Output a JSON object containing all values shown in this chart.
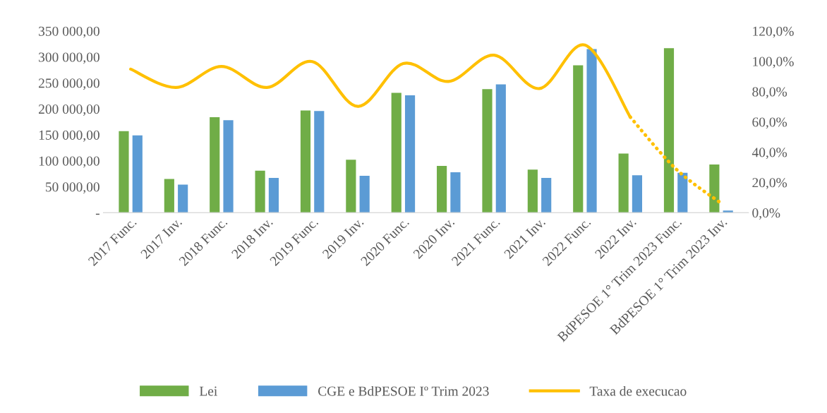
{
  "chart_data": {
    "type": "bar",
    "categories": [
      "2017 Func.",
      "2017 Inv.",
      "2018 Func.",
      "2018 Inv.",
      "2019 Func.",
      "2019 Inv.",
      "2020 Func.",
      "2020 Inv.",
      "2021 Func.",
      "2021 Inv.",
      "2022 Func.",
      "2022 Inv.",
      "BdPESOE 1° Trim 2023 Func.",
      "BdPESOE 1° Trim 2023 Inv."
    ],
    "series": [
      {
        "name": "Lei",
        "color": "#70ad47",
        "values": [
          157000,
          65000,
          184000,
          81000,
          197000,
          102000,
          231000,
          90000,
          238000,
          83000,
          284000,
          114000,
          317000,
          93000
        ]
      },
      {
        "name": "CGE e BdPESOE Iº Trim 2023",
        "color": "#5b9bd5",
        "values": [
          149000,
          54000,
          178000,
          67000,
          196000,
          71000,
          226000,
          78000,
          247000,
          67000,
          315000,
          72000,
          77000,
          4000
        ]
      },
      {
        "name": "Taxa de execucao",
        "type": "line",
        "axis": "y2",
        "color": "#ffc000",
        "line_style": "solid",
        "values": [
          94.8,
          82.7,
          96.6,
          82.7,
          99.8,
          70.2,
          98.5,
          86.7,
          104.0,
          82.0,
          110.7,
          63.1,
          null,
          null
        ]
      },
      {
        "type": "line",
        "axis": "y2",
        "color": "#ffc000",
        "line_style": "dotted",
        "values": [
          null,
          null,
          null,
          null,
          null,
          null,
          null,
          null,
          null,
          null,
          null,
          63.1,
          29.0,
          6.2
        ]
      }
    ],
    "ylim": [
      0,
      350000
    ],
    "yticks": [
      {
        "value": 0,
        "label": "-"
      },
      {
        "value": 50000,
        "label": "50 000,00"
      },
      {
        "value": 100000,
        "label": "100 000,00"
      },
      {
        "value": 150000,
        "label": "150 000,00"
      },
      {
        "value": 200000,
        "label": "200 000,00"
      },
      {
        "value": 250000,
        "label": "250 000,00"
      },
      {
        "value": 300000,
        "label": "300 000,00"
      },
      {
        "value": 350000,
        "label": "350 000,00"
      }
    ],
    "y2lim": [
      0,
      120
    ],
    "y2ticks": [
      {
        "value": 0,
        "label": "0,0%"
      },
      {
        "value": 20,
        "label": "20,0%"
      },
      {
        "value": 40,
        "label": "40,0%"
      },
      {
        "value": 60,
        "label": "60,0%"
      },
      {
        "value": 80,
        "label": "80,0%"
      },
      {
        "value": 100,
        "label": "100,0%"
      },
      {
        "value": 120,
        "label": "120,0%"
      }
    ],
    "grid": false,
    "legend": "bottom"
  }
}
